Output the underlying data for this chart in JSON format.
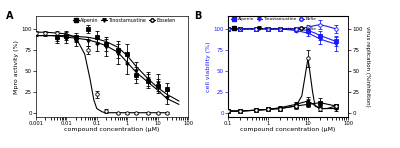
{
  "panel_A": {
    "title": "A",
    "xlabel": "compound concentration (μM)",
    "ylabel": "Mpro activity (%)",
    "xlim": [
      0.001,
      100
    ],
    "ylim": [
      -5,
      115
    ],
    "alpenin_x": [
      0.005,
      0.01,
      0.02,
      0.05,
      0.1,
      0.2,
      0.5,
      1,
      2,
      5,
      10,
      20
    ],
    "alpenin_y": [
      90,
      92,
      90,
      100,
      90,
      82,
      75,
      70,
      45,
      38,
      32,
      28
    ],
    "alpenin_err": [
      5,
      5,
      5,
      5,
      8,
      8,
      10,
      12,
      10,
      8,
      8,
      8
    ],
    "tinostamustine_x": [
      0.005,
      0.01,
      0.02,
      0.05,
      0.1,
      0.2,
      0.5,
      1,
      2,
      5,
      10,
      20
    ],
    "tinostamustine_y": [
      88,
      88,
      85,
      85,
      82,
      78,
      70,
      58,
      50,
      40,
      36,
      18
    ],
    "tinostamustine_err": [
      5,
      5,
      5,
      5,
      8,
      10,
      12,
      12,
      10,
      8,
      10,
      8
    ],
    "ebselen_x": [
      0.001,
      0.002,
      0.005,
      0.01,
      0.02,
      0.05,
      0.1,
      0.2,
      0.5,
      1,
      2,
      5,
      10,
      20
    ],
    "ebselen_y": [
      95,
      95,
      95,
      93,
      88,
      75,
      22,
      2,
      0,
      0,
      0,
      0,
      0,
      0
    ],
    "ebselen_err": [
      3,
      3,
      3,
      3,
      4,
      5,
      4,
      2,
      1,
      1,
      1,
      1,
      1,
      1
    ],
    "alpenin_fit_x": [
      0.001,
      0.003,
      0.007,
      0.01,
      0.02,
      0.05,
      0.1,
      0.2,
      0.5,
      1,
      2,
      5,
      10,
      20,
      50
    ],
    "alpenin_fit_y": [
      92,
      92,
      92,
      92,
      91,
      90,
      88,
      85,
      78,
      68,
      55,
      40,
      30,
      22,
      14
    ],
    "tinostamustine_fit_x": [
      0.001,
      0.003,
      0.007,
      0.01,
      0.02,
      0.05,
      0.1,
      0.2,
      0.5,
      1,
      2,
      5,
      10,
      20,
      50
    ],
    "tinostamustine_fit_y": [
      92,
      92,
      91,
      90,
      89,
      87,
      84,
      80,
      72,
      60,
      48,
      36,
      27,
      17,
      10
    ],
    "ebselen_fit_x": [
      0.001,
      0.002,
      0.005,
      0.01,
      0.02,
      0.04,
      0.06,
      0.08,
      0.1,
      0.15,
      0.2,
      0.5,
      1,
      2,
      5,
      10,
      20
    ],
    "ebselen_fit_y": [
      96,
      96,
      95,
      94,
      90,
      70,
      40,
      15,
      5,
      1,
      0,
      0,
      0,
      0,
      0,
      0,
      0
    ]
  },
  "panel_B": {
    "title": "B",
    "xlabel": "compound concentration (μM)",
    "ylabel_left": "cell viability (%)",
    "ylabel_right": "virus replication (%inhibition)",
    "xlim": [
      0.1,
      100
    ],
    "ylim": [
      -5,
      115
    ],
    "blue_alpenin_x": [
      0.1,
      0.2,
      0.5,
      1,
      2,
      5,
      10,
      20,
      50
    ],
    "blue_alpenin_y": [
      100,
      100,
      100,
      100,
      100,
      100,
      98,
      92,
      85
    ],
    "blue_alpenin_err": [
      2,
      2,
      2,
      2,
      2,
      2,
      2,
      5,
      6
    ],
    "blue_tino_x": [
      0.1,
      0.2,
      0.5,
      1,
      2,
      5,
      10,
      20,
      50
    ],
    "blue_tino_y": [
      100,
      100,
      100,
      100,
      100,
      98,
      95,
      88,
      82
    ],
    "blue_tino_err": [
      2,
      2,
      2,
      2,
      2,
      2,
      4,
      6,
      8
    ],
    "blue_ebse_x": [
      0.1,
      0.2,
      0.5,
      1,
      2,
      5,
      10,
      20,
      50
    ],
    "blue_ebse_y": [
      100,
      100,
      100,
      100,
      100,
      100,
      102,
      105,
      100
    ],
    "blue_ebse_err": [
      2,
      2,
      2,
      2,
      2,
      2,
      3,
      5,
      5
    ],
    "black_alpenin_x": [
      0.1,
      0.2,
      0.5,
      1,
      2,
      5,
      10,
      20,
      50
    ],
    "black_alpenin_y": [
      2,
      2,
      3,
      4,
      5,
      8,
      10,
      12,
      8
    ],
    "black_alpenin_err": [
      1,
      1,
      1,
      1,
      2,
      2,
      3,
      5,
      3
    ],
    "black_tino_x": [
      0.1,
      0.2,
      0.5,
      1,
      2,
      5,
      10,
      20,
      50
    ],
    "black_tino_y": [
      2,
      2,
      3,
      4,
      6,
      10,
      14,
      5,
      5
    ],
    "black_tino_err": [
      1,
      1,
      1,
      1,
      2,
      3,
      5,
      3,
      3
    ],
    "black_ebse_x": [
      0.1,
      0.2,
      0.5,
      1,
      2,
      5,
      10,
      20,
      50
    ],
    "black_ebse_y": [
      2,
      2,
      3,
      4,
      5,
      8,
      65,
      5,
      8
    ],
    "black_ebse_err": [
      1,
      1,
      1,
      1,
      2,
      3,
      10,
      3,
      3
    ],
    "blue_alpenin_fit_x": [
      0.1,
      0.2,
      0.5,
      1,
      2,
      5,
      10,
      15,
      20,
      30,
      50
    ],
    "blue_alpenin_fit_y": [
      100,
      100,
      100,
      100,
      100,
      100,
      98,
      95,
      92,
      89,
      85
    ],
    "blue_tino_fit_x": [
      0.1,
      0.2,
      0.5,
      1,
      2,
      5,
      10,
      15,
      20,
      30,
      50
    ],
    "blue_tino_fit_y": [
      100,
      100,
      100,
      100,
      100,
      98,
      95,
      91,
      88,
      85,
      82
    ],
    "blue_ebse_fit_x": [
      0.1,
      0.2,
      0.5,
      1,
      2,
      5,
      10,
      15,
      20,
      30,
      50
    ],
    "blue_ebse_fit_y": [
      100,
      100,
      100,
      100,
      100,
      100,
      102,
      104,
      105,
      103,
      100
    ],
    "black_alpenin_fit_x": [
      0.1,
      0.2,
      0.5,
      1,
      2,
      5,
      10,
      20,
      50
    ],
    "black_alpenin_fit_y": [
      2,
      2,
      3,
      4,
      5,
      8,
      10,
      12,
      8
    ],
    "black_tino_fit_x": [
      0.1,
      0.2,
      0.5,
      1,
      2,
      5,
      10,
      20,
      50
    ],
    "black_tino_fit_y": [
      2,
      2,
      3,
      4,
      6,
      10,
      14,
      5,
      5
    ],
    "black_ebse_fit_x": [
      0.1,
      0.15,
      0.2,
      0.5,
      1,
      2,
      5,
      7,
      10,
      13,
      15,
      20,
      30,
      50
    ],
    "black_ebse_fit_y": [
      2,
      2,
      2,
      3,
      4,
      5,
      8,
      20,
      65,
      25,
      8,
      5,
      5,
      8
    ]
  },
  "colors": {
    "black": "#000000",
    "blue": "#1a1aff"
  }
}
